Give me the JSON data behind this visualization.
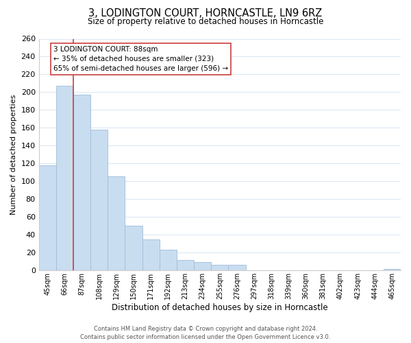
{
  "title": "3, LODINGTON COURT, HORNCASTLE, LN9 6RZ",
  "subtitle": "Size of property relative to detached houses in Horncastle",
  "xlabel": "Distribution of detached houses by size in Horncastle",
  "ylabel": "Number of detached properties",
  "bar_labels": [
    "45sqm",
    "66sqm",
    "87sqm",
    "108sqm",
    "129sqm",
    "150sqm",
    "171sqm",
    "192sqm",
    "213sqm",
    "234sqm",
    "255sqm",
    "276sqm",
    "297sqm",
    "318sqm",
    "339sqm",
    "360sqm",
    "381sqm",
    "402sqm",
    "423sqm",
    "444sqm",
    "465sqm"
  ],
  "bar_heights": [
    118,
    207,
    197,
    158,
    106,
    50,
    35,
    23,
    12,
    9,
    6,
    6,
    0,
    0,
    0,
    0,
    0,
    0,
    0,
    0,
    2
  ],
  "bar_color": "#c9ddf0",
  "bar_edge_color": "#a0bcd8",
  "highlight_bar_index": 2,
  "highlight_color": "#c94040",
  "annotation_title": "3 LODINGTON COURT: 88sqm",
  "annotation_line1": "← 35% of detached houses are smaller (323)",
  "annotation_line2": "65% of semi-detached houses are larger (596) →",
  "annotation_box_color": "#ffffff",
  "annotation_box_edge_color": "#c94040",
  "ylim": [
    0,
    260
  ],
  "yticks": [
    0,
    20,
    40,
    60,
    80,
    100,
    120,
    140,
    160,
    180,
    200,
    220,
    240,
    260
  ],
  "footer_line1": "Contains HM Land Registry data © Crown copyright and database right 2024.",
  "footer_line2": "Contains public sector information licensed under the Open Government Licence v3.0.",
  "background_color": "#ffffff",
  "grid_color": "#dce9f5",
  "title_fontsize": 10.5,
  "subtitle_fontsize": 8.5
}
